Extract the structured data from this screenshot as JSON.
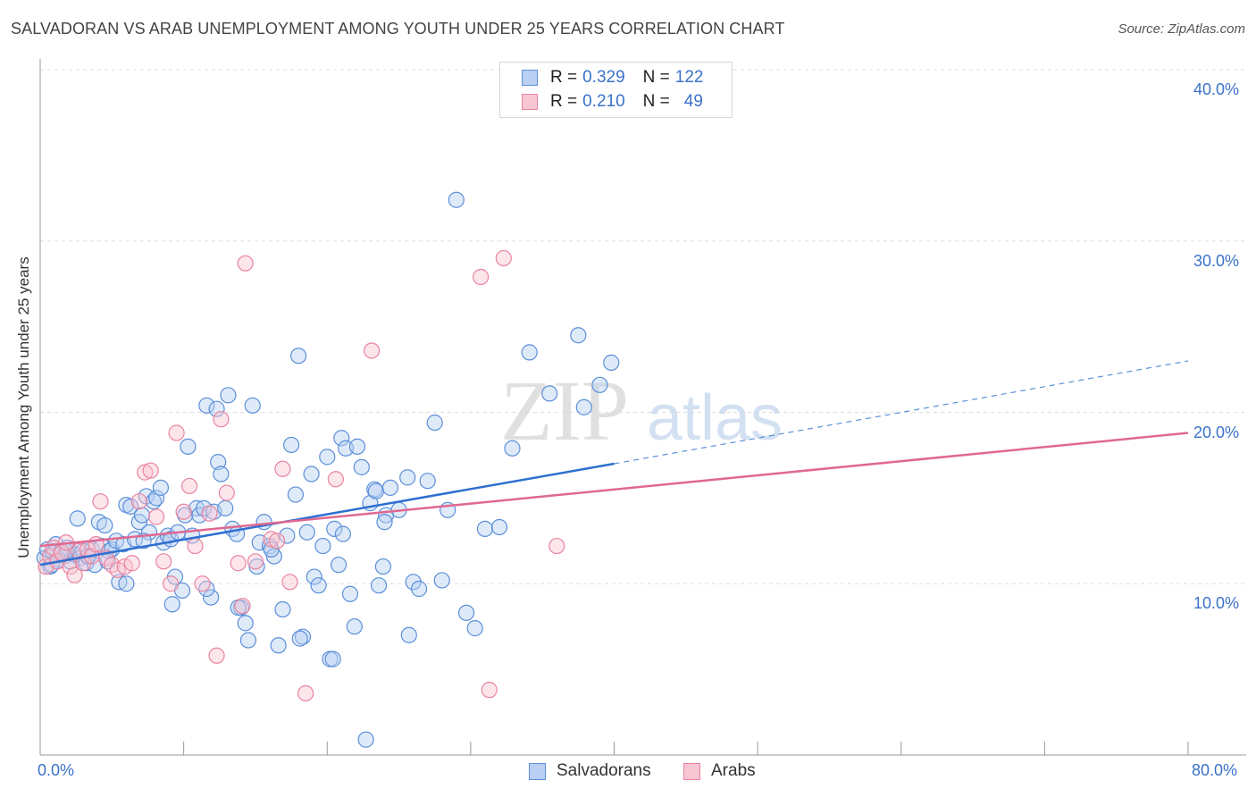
{
  "title": "SALVADORAN VS ARAB UNEMPLOYMENT AMONG YOUTH UNDER 25 YEARS CORRELATION CHART",
  "source": "Source: ZipAtlas.com",
  "watermark": {
    "zip": "ZIP",
    "atlas": "atlas"
  },
  "legend": {
    "r_label": "R =",
    "n_label": "N =",
    "rows": [
      {
        "r": "0.329",
        "n": "122",
        "color": "#5b8fd9",
        "fill": "#b9d0f2"
      },
      {
        "r": "0.210",
        "n": "49",
        "color": "#e9849f",
        "fill": "#f8c5d3"
      }
    ]
  },
  "chart_data": {
    "type": "scatter",
    "title": "SALVADORAN VS ARAB UNEMPLOYMENT AMONG YOUTH UNDER 25 YEARS CORRELATION CHART",
    "xlabel": "",
    "ylabel": "Unemployment Among Youth under 25 years",
    "xlim": [
      0,
      80
    ],
    "ylim": [
      0,
      40
    ],
    "x_tick_labels": [
      "0.0%",
      "80.0%"
    ],
    "y_tick_labels": [
      "10.0%",
      "20.0%",
      "30.0%",
      "40.0%"
    ],
    "y_ticks": [
      10,
      20,
      30,
      40
    ],
    "grid": true,
    "legend_position": "top-center",
    "series": [
      {
        "name": "Salvadorans",
        "color": "#5b8fd9",
        "fill": "#b9d0f2",
        "trend": {
          "x0": 0,
          "y0": 11.1,
          "x1": 40,
          "y1": 17.0,
          "dash_to_x": 80,
          "dash_to_y": 23.0
        },
        "points": [
          [
            0.3,
            11.5
          ],
          [
            0.5,
            12.0
          ],
          [
            0.7,
            11.0
          ],
          [
            0.9,
            11.8
          ],
          [
            1.1,
            12.3
          ],
          [
            1.3,
            11.4
          ],
          [
            1.5,
            11.9
          ],
          [
            1.7,
            11.6
          ],
          [
            1.9,
            12.1
          ],
          [
            2.1,
            11.3
          ],
          [
            2.4,
            11.7
          ],
          [
            2.6,
            13.8
          ],
          [
            2.8,
            11.5
          ],
          [
            3.0,
            11.9
          ],
          [
            3.2,
            11.2
          ],
          [
            3.4,
            11.6
          ],
          [
            3.6,
            12.0
          ],
          [
            3.8,
            11.1
          ],
          [
            4.1,
            13.6
          ],
          [
            4.3,
            12.2
          ],
          [
            4.5,
            13.4
          ],
          [
            4.8,
            11.9
          ],
          [
            5.0,
            12.0
          ],
          [
            5.3,
            12.5
          ],
          [
            5.5,
            10.1
          ],
          [
            5.8,
            12.3
          ],
          [
            6.0,
            14.6
          ],
          [
            6.3,
            14.5
          ],
          [
            6.6,
            12.6
          ],
          [
            6.9,
            13.6
          ],
          [
            7.1,
            14.0
          ],
          [
            7.4,
            15.1
          ],
          [
            7.6,
            13.0
          ],
          [
            7.9,
            14.8
          ],
          [
            8.1,
            15.0
          ],
          [
            8.4,
            15.6
          ],
          [
            8.6,
            12.4
          ],
          [
            8.9,
            12.8
          ],
          [
            9.1,
            12.6
          ],
          [
            9.4,
            10.4
          ],
          [
            9.6,
            13.0
          ],
          [
            9.9,
            9.6
          ],
          [
            10.1,
            14.0
          ],
          [
            10.3,
            18.0
          ],
          [
            10.6,
            12.8
          ],
          [
            10.9,
            14.4
          ],
          [
            11.1,
            14.0
          ],
          [
            11.4,
            14.4
          ],
          [
            11.6,
            20.4
          ],
          [
            11.9,
            9.2
          ],
          [
            12.1,
            14.2
          ],
          [
            12.4,
            17.1
          ],
          [
            12.6,
            16.4
          ],
          [
            12.9,
            14.4
          ],
          [
            13.1,
            21.0
          ],
          [
            13.4,
            13.2
          ],
          [
            13.7,
            12.9
          ],
          [
            14.0,
            8.6
          ],
          [
            14.3,
            7.7
          ],
          [
            14.5,
            6.7
          ],
          [
            14.8,
            20.4
          ],
          [
            15.1,
            11.0
          ],
          [
            15.3,
            12.4
          ],
          [
            15.6,
            13.6
          ],
          [
            16.0,
            12.2
          ],
          [
            16.3,
            11.6
          ],
          [
            16.6,
            6.4
          ],
          [
            16.9,
            8.5
          ],
          [
            17.2,
            12.8
          ],
          [
            17.5,
            18.1
          ],
          [
            17.8,
            15.2
          ],
          [
            18.0,
            23.3
          ],
          [
            18.3,
            6.9
          ],
          [
            18.6,
            13.0
          ],
          [
            18.9,
            16.4
          ],
          [
            19.1,
            10.4
          ],
          [
            19.4,
            9.9
          ],
          [
            19.7,
            12.2
          ],
          [
            20.0,
            17.4
          ],
          [
            20.2,
            5.6
          ],
          [
            20.5,
            13.2
          ],
          [
            20.8,
            11.1
          ],
          [
            21.0,
            18.5
          ],
          [
            21.3,
            17.9
          ],
          [
            21.6,
            9.4
          ],
          [
            21.9,
            7.5
          ],
          [
            22.1,
            18.0
          ],
          [
            22.4,
            16.8
          ],
          [
            22.7,
            0.9
          ],
          [
            23.0,
            14.7
          ],
          [
            23.3,
            15.5
          ],
          [
            23.6,
            9.9
          ],
          [
            23.9,
            11.0
          ],
          [
            24.1,
            14.0
          ],
          [
            24.4,
            15.6
          ],
          [
            25.0,
            14.3
          ],
          [
            25.6,
            16.2
          ],
          [
            26.0,
            10.1
          ],
          [
            26.4,
            9.7
          ],
          [
            27.0,
            16.0
          ],
          [
            27.5,
            19.4
          ],
          [
            28.0,
            10.2
          ],
          [
            28.4,
            14.3
          ],
          [
            29.0,
            32.4
          ],
          [
            29.7,
            8.3
          ],
          [
            30.3,
            7.4
          ],
          [
            31.0,
            13.2
          ],
          [
            32.0,
            13.3
          ],
          [
            32.9,
            17.9
          ],
          [
            34.1,
            23.5
          ],
          [
            35.5,
            21.1
          ],
          [
            37.5,
            24.5
          ],
          [
            37.9,
            20.3
          ],
          [
            39.0,
            21.6
          ],
          [
            39.8,
            22.9
          ],
          [
            21.1,
            12.9
          ],
          [
            12.3,
            20.2
          ],
          [
            9.2,
            8.8
          ],
          [
            7.2,
            12.5
          ],
          [
            20.4,
            5.6
          ],
          [
            25.7,
            7.0
          ],
          [
            18.1,
            6.8
          ],
          [
            23.4,
            15.4
          ],
          [
            16.1,
            12.0
          ],
          [
            13.8,
            8.6
          ],
          [
            11.6,
            9.7
          ],
          [
            24.0,
            13.6
          ],
          [
            6.0,
            10.0
          ],
          [
            3.3,
            11.6
          ],
          [
            1.8,
            11.9
          ],
          [
            0.8,
            11.1
          ],
          [
            4.7,
            11.3
          ]
        ]
      },
      {
        "name": "Arabs",
        "color": "#e9849f",
        "fill": "#f8c5d3",
        "trend": {
          "x0": 0,
          "y0": 12.2,
          "x1": 80,
          "y1": 18.8
        },
        "points": [
          [
            0.4,
            11.0
          ],
          [
            0.7,
            11.6
          ],
          [
            0.9,
            12.1
          ],
          [
            1.2,
            11.3
          ],
          [
            1.5,
            11.8
          ],
          [
            1.8,
            12.4
          ],
          [
            2.1,
            11.0
          ],
          [
            2.4,
            10.5
          ],
          [
            2.7,
            11.9
          ],
          [
            3.0,
            11.2
          ],
          [
            3.3,
            12.0
          ],
          [
            3.6,
            11.6
          ],
          [
            3.9,
            12.3
          ],
          [
            4.2,
            14.8
          ],
          [
            4.6,
            11.5
          ],
          [
            5.0,
            11.1
          ],
          [
            5.4,
            10.8
          ],
          [
            5.9,
            11.0
          ],
          [
            6.4,
            11.2
          ],
          [
            6.9,
            14.8
          ],
          [
            7.3,
            16.5
          ],
          [
            7.7,
            16.6
          ],
          [
            8.1,
            13.9
          ],
          [
            8.6,
            11.3
          ],
          [
            9.1,
            10.0
          ],
          [
            9.5,
            18.8
          ],
          [
            10.0,
            14.2
          ],
          [
            10.4,
            15.7
          ],
          [
            10.8,
            12.2
          ],
          [
            11.3,
            10.0
          ],
          [
            11.8,
            14.1
          ],
          [
            12.3,
            5.8
          ],
          [
            12.6,
            19.6
          ],
          [
            13.0,
            15.3
          ],
          [
            13.8,
            11.2
          ],
          [
            14.1,
            8.7
          ],
          [
            14.3,
            28.7
          ],
          [
            15.0,
            11.3
          ],
          [
            16.1,
            12.6
          ],
          [
            16.5,
            12.5
          ],
          [
            16.9,
            16.7
          ],
          [
            17.4,
            10.1
          ],
          [
            18.5,
            3.6
          ],
          [
            20.6,
            16.1
          ],
          [
            23.1,
            23.6
          ],
          [
            30.7,
            27.9
          ],
          [
            31.3,
            3.8
          ],
          [
            32.3,
            29.0
          ],
          [
            36.0,
            12.2
          ]
        ]
      }
    ]
  },
  "bottom_legend": [
    {
      "label": "Salvadorans",
      "color": "#5b8fd9",
      "fill": "#b9d0f2"
    },
    {
      "label": "Arabs",
      "color": "#e9849f",
      "fill": "#f8c5d3"
    }
  ]
}
